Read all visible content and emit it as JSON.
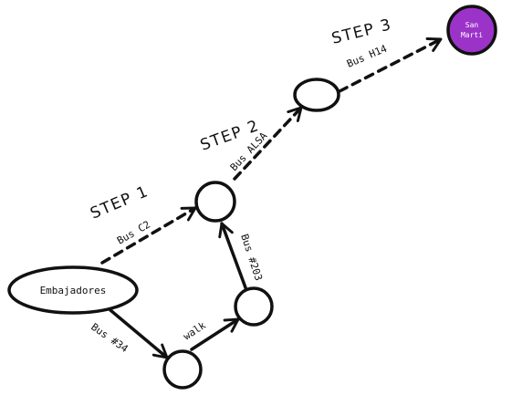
{
  "steps": {
    "step1": "STEP 1",
    "step2": "STEP 2",
    "step3": "STEP 3"
  },
  "nodes": {
    "start": "Embajadores",
    "end_line1": "San",
    "end_line2": "Marti"
  },
  "edges": {
    "bus_c2": "Bus C2",
    "bus_alsa": "Bus ALSA",
    "bus_h14": "Bus H14",
    "bus_34": "Bus #34",
    "walk": "walk",
    "bus_203": "Bus #203"
  },
  "colors": {
    "end_fill": "#9b33c9",
    "ink": "#111111"
  }
}
